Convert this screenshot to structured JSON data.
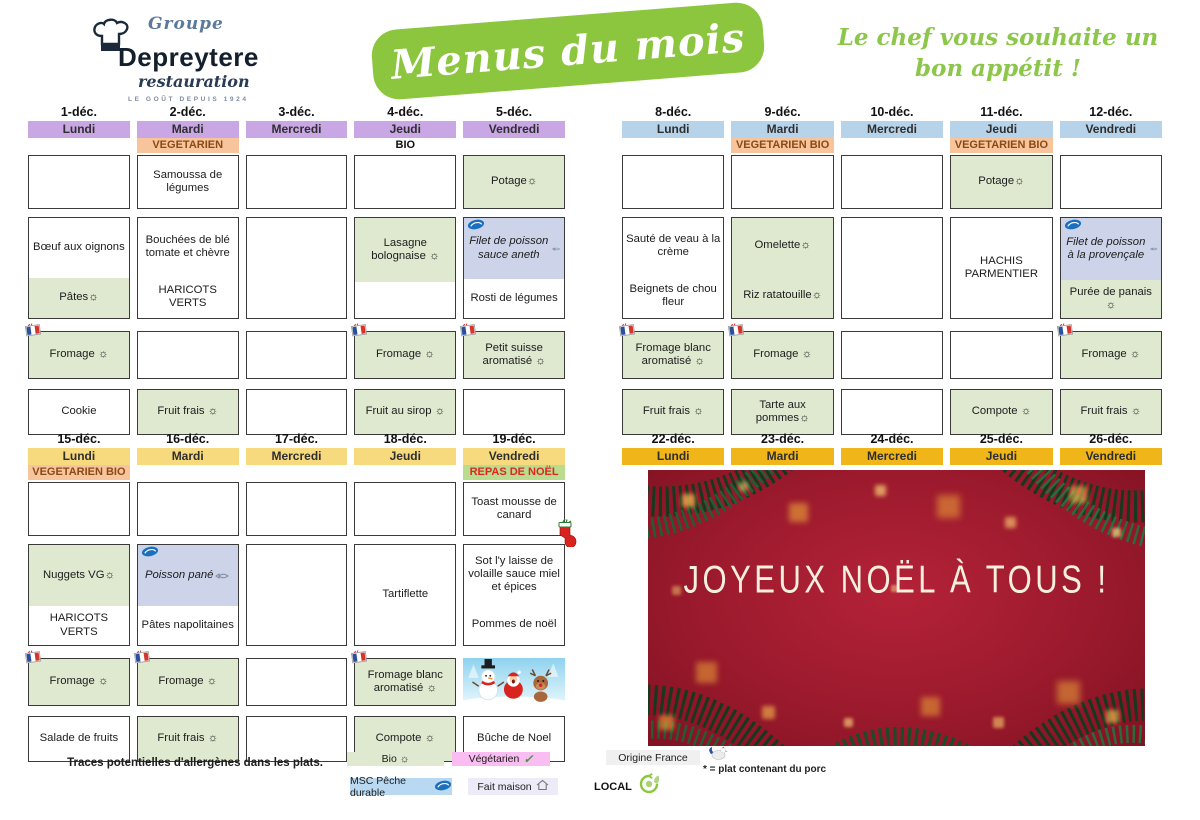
{
  "header": {
    "logo": {
      "group": "Groupe",
      "name": "Depreytere",
      "sub": "restauration",
      "tagline": "LE GOÛT DEPUIS 1924"
    },
    "title": "Menus du mois",
    "greeting_line1": "Le chef vous souhaite un",
    "greeting_line2": "bon appétit !"
  },
  "palette": {
    "white": "#ffffff",
    "green": "#dfe9d0",
    "blue": "#cdd4e9"
  },
  "sub_colors": {
    "orange_bg": "#f7c49c",
    "orange_fg": "#8a4a16",
    "noel_bg": "#b9dc8f",
    "noel_fg": "#e2261d"
  },
  "icons": {
    "flag": "france-flag-icon",
    "msc": "msc-fish-icon",
    "fish": "fish-icon",
    "stocking": "christmas-stocking-icon",
    "snowman": "snowmen-santa-reindeer-image",
    "rooster": "rooster-icon",
    "house": "house-icon",
    "local": "local-leaf-icon",
    "check": "checkmark-icon"
  },
  "weeks": [
    {
      "id": "week1",
      "band": "#c9a6e4",
      "has_sub": true,
      "days": [
        {
          "date": "1-déc.",
          "day": "Lundi",
          "cells": [
            {
              "segments": [
                {
                  "text": "",
                  "bg": "white"
                }
              ]
            },
            {
              "segments": [
                {
                  "text": "Bœuf aux oignons",
                  "bg": "white",
                  "flex": 1.5
                },
                {
                  "text": "Pâtes☼",
                  "bg": "green"
                }
              ]
            },
            {
              "flag": true,
              "segments": [
                {
                  "text": "Fromage ☼",
                  "bg": "green"
                }
              ]
            },
            {
              "segments": [
                {
                  "text": "Cookie",
                  "bg": "white"
                }
              ]
            }
          ]
        },
        {
          "date": "2-déc.",
          "day": "Mardi",
          "sub": {
            "text": "VEGETARIEN",
            "bg": "orange"
          },
          "cells": [
            {
              "segments": [
                {
                  "text": "Samoussa de légumes",
                  "bg": "white"
                }
              ]
            },
            {
              "segments": [
                {
                  "text": "Bouchées de blé tomate et chèvre",
                  "bg": "white",
                  "flex": 1.4
                },
                {
                  "text": "HARICOTS VERTS",
                  "bg": "white"
                }
              ]
            },
            {
              "segments": [
                {
                  "text": "",
                  "bg": "white"
                }
              ]
            },
            {
              "segments": [
                {
                  "text": "Fruit frais ☼",
                  "bg": "green"
                }
              ]
            }
          ]
        },
        {
          "date": "3-déc.",
          "day": "Mercredi",
          "cells": [
            {
              "segments": [
                {
                  "text": "",
                  "bg": "white"
                }
              ]
            },
            {
              "segments": [
                {
                  "text": "",
                  "bg": "white"
                }
              ]
            },
            {
              "segments": [
                {
                  "text": "",
                  "bg": "white"
                }
              ]
            },
            {
              "segments": [
                {
                  "text": "",
                  "bg": "white"
                }
              ]
            }
          ]
        },
        {
          "date": "4-déc.",
          "day": "Jeudi",
          "sub": {
            "text": "BIO",
            "bg": "none"
          },
          "cells": [
            {
              "segments": [
                {
                  "text": "",
                  "bg": "white"
                }
              ]
            },
            {
              "segments": [
                {
                  "text": "Lasagne bolognaise ☼",
                  "bg": "green",
                  "flex": 1.8
                },
                {
                  "text": "",
                  "bg": "white"
                }
              ]
            },
            {
              "flag": true,
              "segments": [
                {
                  "text": "Fromage ☼",
                  "bg": "green"
                }
              ]
            },
            {
              "segments": [
                {
                  "text": "Fruit au sirop ☼",
                  "bg": "green"
                }
              ]
            }
          ]
        },
        {
          "date": "5-déc.",
          "day": "Vendredi",
          "cells": [
            {
              "segments": [
                {
                  "text": "Potage☼",
                  "bg": "green"
                }
              ]
            },
            {
              "msc": true,
              "segments": [
                {
                  "text": "Filet de poisson sauce aneth",
                  "bg": "blue",
                  "italic": true,
                  "fish": true,
                  "flex": 1.6
                },
                {
                  "text": "Rosti de légumes",
                  "bg": "white"
                }
              ]
            },
            {
              "flag": true,
              "segments": [
                {
                  "text": "Petit suisse aromatisé ☼",
                  "bg": "green"
                }
              ]
            },
            {
              "segments": [
                {
                  "text": "",
                  "bg": "white"
                }
              ]
            }
          ]
        }
      ]
    },
    {
      "id": "week2",
      "band": "#b7d3ea",
      "has_sub": true,
      "days": [
        {
          "date": "8-déc.",
          "day": "Lundi",
          "cells": [
            {
              "segments": [
                {
                  "text": "",
                  "bg": "white"
                }
              ]
            },
            {
              "segments": [
                {
                  "text": "Sauté de veau à la crème",
                  "bg": "white",
                  "flex": 1.3
                },
                {
                  "text": "Beignets de chou fleur",
                  "bg": "white"
                }
              ]
            },
            {
              "flag": true,
              "segments": [
                {
                  "text": "Fromage blanc aromatisé ☼",
                  "bg": "green"
                }
              ]
            },
            {
              "segments": [
                {
                  "text": "Fruit frais ☼",
                  "bg": "green"
                }
              ]
            }
          ]
        },
        {
          "date": "9-déc.",
          "day": "Mardi",
          "sub": {
            "text": "VEGETARIEN BIO",
            "bg": "orange"
          },
          "cells": [
            {
              "segments": [
                {
                  "text": "",
                  "bg": "white"
                }
              ]
            },
            {
              "segments": [
                {
                  "text": "Omelette☼",
                  "bg": "green",
                  "flex": 1.3
                },
                {
                  "text": "Riz ratatouille☼",
                  "bg": "green"
                }
              ]
            },
            {
              "flag": true,
              "segments": [
                {
                  "text": "Fromage ☼",
                  "bg": "green"
                }
              ]
            },
            {
              "segments": [
                {
                  "text": "Tarte aux pommes☼",
                  "bg": "green"
                }
              ]
            }
          ]
        },
        {
          "date": "10-déc.",
          "day": "Mercredi",
          "cells": [
            {
              "segments": [
                {
                  "text": "",
                  "bg": "white"
                }
              ]
            },
            {
              "segments": [
                {
                  "text": "",
                  "bg": "white"
                }
              ]
            },
            {
              "segments": [
                {
                  "text": "",
                  "bg": "white"
                }
              ]
            },
            {
              "segments": [
                {
                  "text": "",
                  "bg": "white"
                }
              ]
            }
          ]
        },
        {
          "date": "11-déc.",
          "day": "Jeudi",
          "sub": {
            "text": "VEGETARIEN BIO",
            "bg": "orange"
          },
          "cells": [
            {
              "segments": [
                {
                  "text": "Potage☼",
                  "bg": "green"
                }
              ]
            },
            {
              "segments": [
                {
                  "text": "HACHIS PARMENTIER",
                  "bg": "white"
                }
              ]
            },
            {
              "segments": [
                {
                  "text": "",
                  "bg": "white"
                }
              ]
            },
            {
              "segments": [
                {
                  "text": "Compote ☼",
                  "bg": "green"
                }
              ]
            }
          ]
        },
        {
          "date": "12-déc.",
          "day": "Vendredi",
          "cells": [
            {
              "segments": [
                {
                  "text": "",
                  "bg": "white"
                }
              ]
            },
            {
              "msc": true,
              "segments": [
                {
                  "text": "Filet de poisson à la provençale",
                  "bg": "blue",
                  "italic": true,
                  "fish": true,
                  "flex": 1.7
                },
                {
                  "text": "Purée de panais ☼",
                  "bg": "green"
                }
              ]
            },
            {
              "flag": true,
              "segments": [
                {
                  "text": "Fromage ☼",
                  "bg": "green"
                }
              ]
            },
            {
              "segments": [
                {
                  "text": "Fruit frais ☼",
                  "bg": "green"
                }
              ]
            }
          ]
        }
      ]
    },
    {
      "id": "week3",
      "band": "#f7da7e",
      "has_sub": true,
      "days": [
        {
          "date": "15-déc.",
          "day": "Lundi",
          "sub": {
            "text": "VEGETARIEN BIO",
            "bg": "orange"
          },
          "cells": [
            {
              "segments": [
                {
                  "text": "",
                  "bg": "white"
                }
              ]
            },
            {
              "segments": [
                {
                  "text": "Nuggets VG☼",
                  "bg": "green",
                  "flex": 1.6
                },
                {
                  "text": "HARICOTS VERTS",
                  "bg": "white"
                }
              ]
            },
            {
              "flag": true,
              "segments": [
                {
                  "text": "Fromage ☼",
                  "bg": "green"
                }
              ]
            },
            {
              "segments": [
                {
                  "text": "Salade de fruits",
                  "bg": "white"
                }
              ]
            }
          ]
        },
        {
          "date": "16-déc.",
          "day": "Mardi",
          "cells": [
            {
              "segments": [
                {
                  "text": "",
                  "bg": "white"
                }
              ]
            },
            {
              "msc": true,
              "segments": [
                {
                  "text": "Poisson pané",
                  "bg": "blue",
                  "italic": true,
                  "fish": true,
                  "flex": 1.6
                },
                {
                  "text": "Pâtes napolitaines",
                  "bg": "white"
                }
              ]
            },
            {
              "flag": true,
              "segments": [
                {
                  "text": "Fromage ☼",
                  "bg": "green"
                }
              ]
            },
            {
              "segments": [
                {
                  "text": "Fruit frais ☼",
                  "bg": "green"
                }
              ]
            }
          ]
        },
        {
          "date": "17-déc.",
          "day": "Mercredi",
          "cells": [
            {
              "segments": [
                {
                  "text": "",
                  "bg": "white"
                }
              ]
            },
            {
              "segments": [
                {
                  "text": "",
                  "bg": "white"
                }
              ]
            },
            {
              "segments": [
                {
                  "text": "",
                  "bg": "white"
                }
              ]
            },
            {
              "segments": [
                {
                  "text": "",
                  "bg": "white"
                }
              ]
            }
          ]
        },
        {
          "date": "18-déc.",
          "day": "Jeudi",
          "cells": [
            {
              "segments": [
                {
                  "text": "",
                  "bg": "white"
                }
              ]
            },
            {
              "segments": [
                {
                  "text": "Tartiflette",
                  "bg": "white"
                }
              ]
            },
            {
              "flag": true,
              "segments": [
                {
                  "text": "Fromage blanc aromatisé ☼",
                  "bg": "green"
                }
              ]
            },
            {
              "segments": [
                {
                  "text": "Compote ☼",
                  "bg": "green"
                }
              ]
            }
          ]
        },
        {
          "date": "19-déc.",
          "day": "Vendredi",
          "sub": {
            "text": "REPAS DE NOËL",
            "bg": "noel"
          },
          "cells": [
            {
              "stocking": true,
              "segments": [
                {
                  "text": "Toast mousse de canard",
                  "bg": "white"
                }
              ]
            },
            {
              "segments": [
                {
                  "text": "Sot l'y laisse de volaille sauce miel et épices",
                  "bg": "white",
                  "flex": 1.5
                },
                {
                  "text": "Pommes de noël",
                  "bg": "white"
                }
              ]
            },
            {
              "image": "snowman"
            },
            {
              "segments": [
                {
                  "text": "Bûche de Noel",
                  "bg": "white"
                }
              ]
            }
          ]
        }
      ]
    },
    {
      "id": "week4",
      "band": "#f0b519",
      "has_sub": false,
      "days": [
        {
          "date": "22-déc.",
          "day": "Lundi"
        },
        {
          "date": "23-déc.",
          "day": "Mardi"
        },
        {
          "date": "24-déc.",
          "day": "Mercredi"
        },
        {
          "date": "25-déc.",
          "day": "Jeudi"
        },
        {
          "date": "26-déc.",
          "day": "Vendredi"
        }
      ]
    }
  ],
  "xmas": {
    "message": "JOYEUX NOËL À TOUS !"
  },
  "legend": {
    "allergen_note": "Traces potentielles d'allergènes dans les plats.",
    "bio": "Bio ☼",
    "vegetarien": "Végétarien",
    "vegetarien_check": "✓",
    "msc": "MSC Pêche durable",
    "fait_maison": "Fait maison",
    "origine_france": "Origine France",
    "porc_note": "* = plat contenant du porc",
    "local": "LOCAL",
    "colors": {
      "bio_bg": "#dfe9d0",
      "veg_bg": "#f9bdf2",
      "msc_bg": "#b9d8f2",
      "fait_maison_bg": "#edebf7",
      "origine_bg": "#f0f0f0"
    }
  }
}
